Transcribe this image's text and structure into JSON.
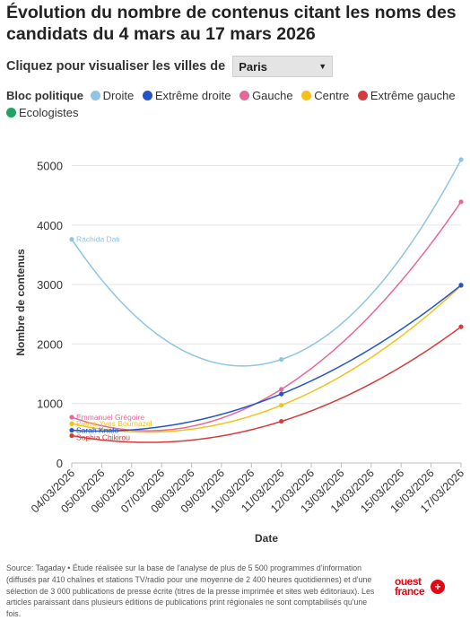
{
  "header": {
    "title": "Évolution du nombre de contenus citant les noms des candidats du 4 mars au 17 mars 2026"
  },
  "selector": {
    "label": "Cliquez pour visualiser les villes de",
    "value": "Paris"
  },
  "legend": {
    "title": "Bloc politique",
    "items": [
      {
        "label": "Droite",
        "color": "#8fc4e4"
      },
      {
        "label": "Extrême droite",
        "color": "#2255cc"
      },
      {
        "label": "Gauche",
        "color": "#e8679b"
      },
      {
        "label": "Centre",
        "color": "#f2c21b"
      },
      {
        "label": "Extrême gauche",
        "color": "#d63a3a"
      },
      {
        "label": "Ecologistes",
        "color": "#1fa463"
      }
    ]
  },
  "chart_data": {
    "type": "line",
    "xlabel": "Date",
    "ylabel": "Nombre de contenus",
    "ylim": [
      0,
      5400
    ],
    "yticks": [
      0,
      1000,
      2000,
      3000,
      4000,
      5000
    ],
    "xticks": [
      "04/03/2026",
      "05/03/2026",
      "06/03/2026",
      "07/03/2026",
      "08/03/2026",
      "09/03/2026",
      "10/03/2026",
      "11/03/2026",
      "12/03/2026",
      "13/03/2026",
      "14/03/2026",
      "15/03/2026",
      "16/03/2026",
      "17/03/2026"
    ],
    "grid": "horizontal",
    "series": [
      {
        "name": "Rachida Dati",
        "bloc": "Droite",
        "color": "#8fc4e4",
        "x": [
          0,
          7,
          13
        ],
        "values": [
          3760,
          1740,
          5100
        ]
      },
      {
        "name": "Emmanuel Grégoire",
        "bloc": "Gauche",
        "color": "#e8679b",
        "x": [
          0,
          7,
          13
        ],
        "values": [
          770,
          1240,
          4390
        ]
      },
      {
        "name": "Pierre-Yves Bournazel",
        "bloc": "Centre",
        "color": "#f2c21b",
        "x": [
          0,
          7,
          13
        ],
        "values": [
          660,
          970,
          2980
        ]
      },
      {
        "name": "Sarah Knafo",
        "bloc": "Extrême droite",
        "color": "#2255cc",
        "x": [
          0,
          7,
          13
        ],
        "values": [
          550,
          1160,
          2990
        ]
      },
      {
        "name": "Sophia Chikirou",
        "bloc": "Extrême gauche",
        "color": "#d63a3a",
        "x": [
          0,
          7,
          13
        ],
        "values": [
          460,
          700,
          2290
        ]
      }
    ]
  },
  "footer": {
    "source": "Source: Tagaday • Étude réalisée sur la base de l'analyse de plus de 5 500 programmes d'information (diffusés par 410 chaînes et stations TV/radio pour une moyenne de 2 400 heures quotidiennes) et d'une sélection de 3 000 publications de presse écrite (titres de la presse imprimée et sites web éditoriaux). Les articles paraissant dans plusieurs éditions de publications print régionales ne sont comptabilisés qu'une fois.",
    "logo_text_line1": "ouest",
    "logo_text_line2": "france"
  }
}
